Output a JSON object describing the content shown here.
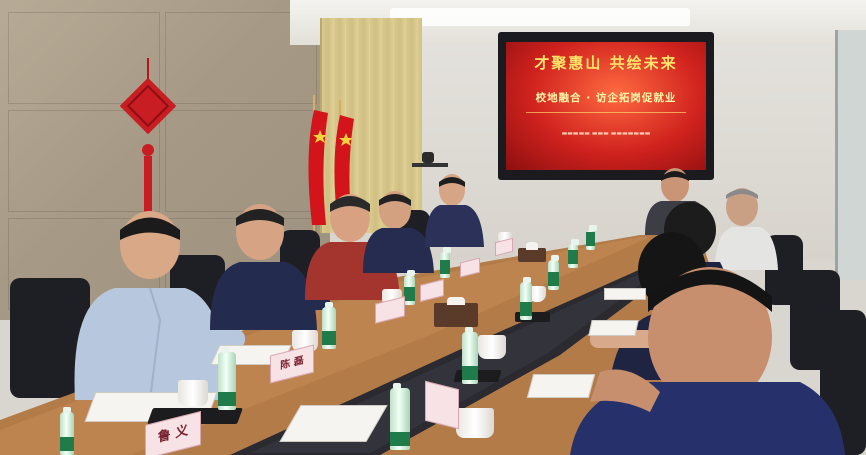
{
  "photo": {
    "screen": {
      "title": "才聚惠山 共绘未来",
      "subtitle": "校地融合 · 访企拓岗促就业"
    },
    "nameplates": [
      {
        "text": "鲁 义"
      },
      {
        "text": "陈 磊"
      }
    ],
    "palette": {
      "wall": "#a69a86",
      "screen_red": "#d0221e",
      "table": "#b07a4a",
      "table_inlay": "#2a2a30"
    }
  }
}
